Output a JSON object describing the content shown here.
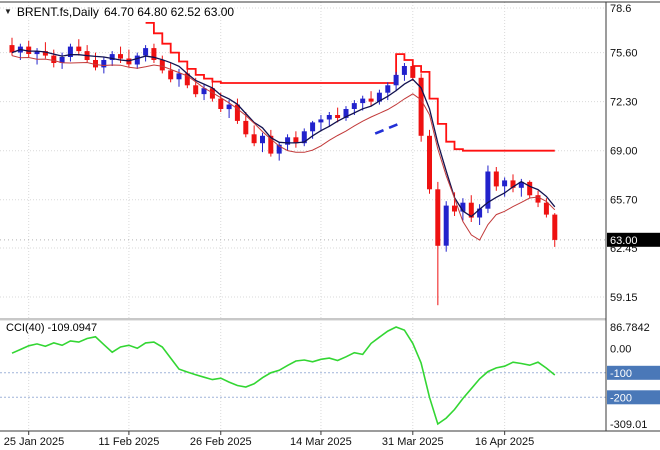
{
  "header": {
    "symbol_marker": "▼",
    "title": "BRENT.fs,Daily",
    "ohlc_text": "64.70 64.80 62.52 63.00"
  },
  "indicator_label": {
    "text": "CCI(40) -109.0947"
  },
  "price_axis": {
    "ticks": [
      [
        "78.6",
        78.6
      ],
      [
        "75.60",
        75.6
      ],
      [
        "72.30",
        72.3
      ],
      [
        "69.00",
        69.0
      ],
      [
        "65.70",
        65.7
      ],
      [
        "62.45",
        62.45
      ],
      [
        "59.15",
        59.15
      ]
    ],
    "price_tag": {
      "text": "63.00",
      "value": 63.0,
      "bg": "#000000",
      "fg": "#ffffff"
    }
  },
  "cci_axis": {
    "ticks": [
      [
        "86.7842",
        86.7842
      ],
      [
        "0.00",
        0
      ]
    ],
    "tags": [
      [
        "-100",
        -100
      ],
      [
        "-200",
        -200
      ]
    ],
    "min_tick": [
      "-309.01",
      -309.01
    ],
    "tag_bg": "#4a78b8"
  },
  "time_axis": {
    "labels": [
      "25 Jan 2025",
      "11 Feb 2025",
      "26 Feb 2025",
      "14 Mar 2025",
      "31 Mar 2025",
      "16 Apr 2025"
    ],
    "indices": [
      2,
      14,
      25,
      37,
      48,
      59
    ]
  },
  "colors": {
    "background": "#ffffff",
    "up_candle": "#2222cc",
    "down_candle": "#ee1111",
    "cci_line": "#33d633",
    "resistance": "#ff1111",
    "grid": "#d9d9d9"
  },
  "chart_data": [
    {
      "type": "candlestick",
      "title": "BRENT.fs,Daily",
      "ylabel": "Price",
      "ylim": [
        58.0,
        78.9
      ],
      "up_color": "#2222cc",
      "down_color": "#ee1111",
      "last_ohlc": {
        "open": 64.7,
        "high": 64.8,
        "low": 62.52,
        "close": 63.0
      },
      "ohlc": [
        [
          76.1,
          76.6,
          75.4,
          75.6
        ],
        [
          75.6,
          76.2,
          75.1,
          76.0
        ],
        [
          76.0,
          76.4,
          75.3,
          75.5
        ],
        [
          75.5,
          75.9,
          74.8,
          75.7
        ],
        [
          75.7,
          76.3,
          75.2,
          75.4
        ],
        [
          75.4,
          75.8,
          74.6,
          74.9
        ],
        [
          74.9,
          75.6,
          74.5,
          75.3
        ],
        [
          75.3,
          76.2,
          75.0,
          76.0
        ],
        [
          76.0,
          76.5,
          75.4,
          75.7
        ],
        [
          75.7,
          76.1,
          74.9,
          75.1
        ],
        [
          75.1,
          75.6,
          74.4,
          74.6
        ],
        [
          74.6,
          75.3,
          74.2,
          75.1
        ],
        [
          75.1,
          75.7,
          74.7,
          75.5
        ],
        [
          75.5,
          76.0,
          74.9,
          75.2
        ],
        [
          75.2,
          75.8,
          74.6,
          74.8
        ],
        [
          74.8,
          75.6,
          74.5,
          75.4
        ],
        [
          75.4,
          76.1,
          75.0,
          75.9
        ],
        [
          75.9,
          76.2,
          74.9,
          75.1
        ],
        [
          75.1,
          75.4,
          74.2,
          74.4
        ],
        [
          74.4,
          74.9,
          73.6,
          73.8
        ],
        [
          73.8,
          74.5,
          73.3,
          74.2
        ],
        [
          74.2,
          74.6,
          73.2,
          73.4
        ],
        [
          73.4,
          73.9,
          72.6,
          72.8
        ],
        [
          72.8,
          73.5,
          72.4,
          73.2
        ],
        [
          73.2,
          73.6,
          72.3,
          72.5
        ],
        [
          72.5,
          72.9,
          71.6,
          71.8
        ],
        [
          71.8,
          72.4,
          71.2,
          72.1
        ],
        [
          72.1,
          72.5,
          70.8,
          71.0
        ],
        [
          71.0,
          71.6,
          69.9,
          70.1
        ],
        [
          70.1,
          70.7,
          69.3,
          69.5
        ],
        [
          69.5,
          70.2,
          68.9,
          70.0
        ],
        [
          70.0,
          70.4,
          68.6,
          68.8
        ],
        [
          68.8,
          69.6,
          68.33,
          69.4
        ],
        [
          69.4,
          70.1,
          69.0,
          69.9
        ],
        [
          69.9,
          70.3,
          69.2,
          69.5
        ],
        [
          69.5,
          70.5,
          69.3,
          70.3
        ],
        [
          70.3,
          71.0,
          69.8,
          70.9
        ],
        [
          70.9,
          71.4,
          70.3,
          71.1
        ],
        [
          71.1,
          71.6,
          70.6,
          71.4
        ],
        [
          71.4,
          71.9,
          70.9,
          71.2
        ],
        [
          71.2,
          72.0,
          71.0,
          71.8
        ],
        [
          71.8,
          72.4,
          71.4,
          72.2
        ],
        [
          72.2,
          72.7,
          71.7,
          72.5
        ],
        [
          72.5,
          73.0,
          72.0,
          72.3
        ],
        [
          72.3,
          73.1,
          72.1,
          72.9
        ],
        [
          72.9,
          73.6,
          72.4,
          73.4
        ],
        [
          73.4,
          74.3,
          73.0,
          74.1
        ],
        [
          74.1,
          74.9,
          73.7,
          74.7
        ],
        [
          74.7,
          74.9,
          73.7,
          73.9
        ],
        [
          73.9,
          74.2,
          69.6,
          70.0
        ],
        [
          70.0,
          70.4,
          66.1,
          66.4
        ],
        [
          66.4,
          66.9,
          58.6,
          62.6
        ],
        [
          62.6,
          65.6,
          62.2,
          65.3
        ],
        [
          65.3,
          66.2,
          64.6,
          64.9
        ],
        [
          64.9,
          65.8,
          64.3,
          65.5
        ],
        [
          65.5,
          66.0,
          64.2,
          64.5
        ],
        [
          64.5,
          65.4,
          64.0,
          65.1
        ],
        [
          65.1,
          68.0,
          64.8,
          67.6
        ],
        [
          67.6,
          67.9,
          66.3,
          66.6
        ],
        [
          66.6,
          67.2,
          65.9,
          67.0
        ],
        [
          67.0,
          67.4,
          66.2,
          66.5
        ],
        [
          66.5,
          67.1,
          65.9,
          66.9
        ],
        [
          66.9,
          67.0,
          65.8,
          66.0
        ],
        [
          66.0,
          66.3,
          65.2,
          65.5
        ],
        [
          65.5,
          65.8,
          64.5,
          64.7
        ],
        [
          64.7,
          64.8,
          62.52,
          63.0
        ]
      ],
      "overlays": {
        "resistance_color": "#ff1111",
        "resistance_steps": [
          [
            16,
            77.6
          ],
          [
            17,
            76.9
          ],
          [
            18,
            76.2
          ],
          [
            19,
            75.6
          ],
          [
            20,
            75.0
          ],
          [
            21,
            74.5
          ],
          [
            22,
            74.1
          ],
          [
            23,
            73.85
          ],
          [
            24,
            73.65
          ],
          [
            25,
            73.55
          ],
          [
            45,
            73.55
          ],
          [
            46,
            75.5
          ],
          [
            47,
            75.1
          ],
          [
            48,
            74.7
          ],
          [
            49,
            74.3
          ],
          [
            50,
            72.5
          ],
          [
            51,
            70.8
          ],
          [
            52,
            69.6
          ],
          [
            53,
            69.1
          ],
          [
            54,
            69.0
          ],
          [
            65,
            69.0
          ]
        ],
        "ma_dark_period": 5,
        "ma_red_period": 6,
        "dashed_segment": {
          "from": [
            43.5,
            70.15
          ],
          "to": [
            46.3,
            70.8
          ],
          "color": "#2230d6"
        }
      }
    },
    {
      "type": "line",
      "title": "CCI(40)",
      "period": 40,
      "last_value": -109.0947,
      "levels": [
        -100,
        -200
      ],
      "ylim": [
        -320,
        100
      ],
      "color": "#33d633",
      "values": [
        -20,
        -5,
        10,
        18,
        8,
        22,
        12,
        30,
        25,
        40,
        47,
        15,
        -16,
        5,
        12,
        0,
        22,
        25,
        5,
        -40,
        -85,
        -97,
        -108,
        -118,
        -128,
        -122,
        -138,
        -152,
        -158,
        -145,
        -120,
        -100,
        -90,
        -70,
        -52,
        -48,
        -55,
        -45,
        -40,
        -50,
        -35,
        -18,
        -25,
        20,
        45,
        70,
        86.7842,
        74,
        20,
        -60,
        -200,
        -309.01,
        -285,
        -250,
        -205,
        -165,
        -125,
        -95,
        -80,
        -73,
        -57,
        -62,
        -69,
        -57,
        -81,
        -109.0947
      ]
    }
  ]
}
